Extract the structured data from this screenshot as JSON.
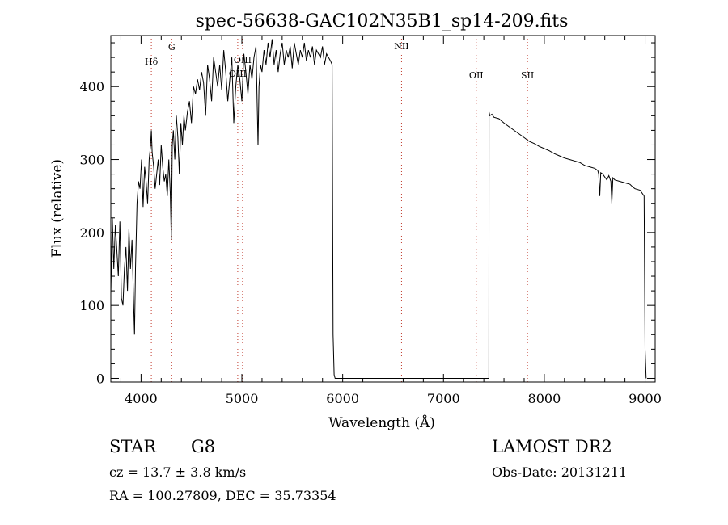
{
  "chart_data": {
    "type": "line",
    "title": "spec-56638-GAC102N35B1_sp14-209.fits",
    "xlabel": "Wavelength (Å)",
    "ylabel": "Flux (relative)",
    "xlim": [
      3700,
      9100
    ],
    "ylim": [
      -5,
      470
    ],
    "xticks": [
      4000,
      5000,
      6000,
      7000,
      8000,
      9000
    ],
    "yticks": [
      0,
      100,
      200,
      300,
      400
    ],
    "grid": false,
    "line_color": "#000000",
    "marker_color": "#c0392b",
    "spectral_lines": [
      {
        "label": "Hδ",
        "x": 4102
      },
      {
        "label": "G",
        "x": 4304
      },
      {
        "label": "OIII",
        "x": 4959
      },
      {
        "label": "OIII",
        "x": 5007
      },
      {
        "label": "NII",
        "x": 6584
      },
      {
        "label": "OII",
        "x": 7325
      },
      {
        "label": "SII",
        "x": 7833
      }
    ],
    "series": [
      {
        "x": [
          3700,
          3715,
          3730,
          3745,
          3760,
          3775,
          3790,
          3805,
          3820,
          3835,
          3850,
          3865,
          3880,
          3895,
          3910,
          3925,
          3935,
          3945,
          3960,
          3975,
          3990,
          4005,
          4020,
          4035,
          4050,
          4065,
          4080,
          4095,
          4102,
          4110,
          4125,
          4140,
          4155,
          4170,
          4185,
          4200,
          4215,
          4230,
          4245,
          4260,
          4275,
          4290,
          4300,
          4310,
          4320,
          4335,
          4350,
          4365,
          4380,
          4395,
          4410,
          4425,
          4440,
          4460,
          4480,
          4500,
          4520,
          4540,
          4560,
          4580,
          4600,
          4620,
          4640,
          4660,
          4680,
          4700,
          4720,
          4740,
          4760,
          4780,
          4800,
          4820,
          4840,
          4860,
          4880,
          4900,
          4920,
          4940,
          4960,
          4980,
          5000,
          5020,
          5040,
          5060,
          5080,
          5100,
          5120,
          5140,
          5160,
          5170,
          5185,
          5200,
          5220,
          5240,
          5260,
          5280,
          5300,
          5320,
          5340,
          5360,
          5380,
          5400,
          5420,
          5440,
          5460,
          5480,
          5500,
          5520,
          5540,
          5560,
          5580,
          5600,
          5620,
          5640,
          5660,
          5680,
          5700,
          5720,
          5740,
          5760,
          5780,
          5800,
          5820,
          5840,
          5860,
          5880,
          5895,
          5905,
          5915,
          5925,
          5935,
          5950,
          6000,
          6500,
          7000,
          7400,
          7450,
          7452,
          7460,
          7480,
          7500,
          7550,
          7600,
          7650,
          7700,
          7750,
          7800,
          7850,
          7900,
          7950,
          8000,
          8050,
          8100,
          8150,
          8200,
          8250,
          8300,
          8350,
          8400,
          8450,
          8500,
          8530,
          8540,
          8550,
          8560,
          8580,
          8600,
          8620,
          8640,
          8660,
          8670,
          8680,
          8700,
          8750,
          8800,
          8850,
          8880,
          8900,
          8950,
          8990,
          9000,
          9010
        ],
        "y": [
          115,
          220,
          150,
          210,
          175,
          140,
          215,
          110,
          100,
          150,
          180,
          120,
          205,
          150,
          190,
          110,
          60,
          150,
          240,
          270,
          260,
          300,
          235,
          290,
          270,
          240,
          300,
          320,
          340,
          310,
          290,
          260,
          280,
          300,
          265,
          320,
          290,
          270,
          280,
          250,
          300,
          255,
          190,
          320,
          340,
          300,
          360,
          330,
          280,
          350,
          320,
          360,
          340,
          365,
          380,
          350,
          400,
          390,
          410,
          395,
          420,
          405,
          360,
          430,
          410,
          380,
          440,
          420,
          400,
          430,
          395,
          450,
          420,
          380,
          410,
          440,
          350,
          400,
          430,
          410,
          380,
          445,
          420,
          390,
          430,
          410,
          440,
          455,
          320,
          400,
          430,
          420,
          450,
          430,
          460,
          440,
          465,
          430,
          450,
          420,
          445,
          460,
          430,
          450,
          440,
          455,
          425,
          460,
          445,
          430,
          450,
          440,
          460,
          435,
          450,
          440,
          455,
          430,
          450,
          445,
          440,
          455,
          430,
          445,
          440,
          435,
          430,
          60,
          5,
          0,
          0,
          0,
          0,
          0,
          0,
          0,
          0,
          365,
          360,
          362,
          358,
          356,
          350,
          345,
          340,
          335,
          330,
          325,
          322,
          318,
          315,
          312,
          308,
          305,
          302,
          300,
          298,
          296,
          292,
          290,
          288,
          285,
          280,
          250,
          282,
          280,
          276,
          272,
          278,
          270,
          240,
          275,
          272,
          270,
          268,
          266,
          262,
          260,
          258,
          250,
          40,
          0
        ]
      }
    ]
  },
  "footer": {
    "object_class": "STAR",
    "subclass": "G8",
    "survey": "LAMOST DR2",
    "cz": "cz = 13.7 ± 3.8 km/s",
    "obs_date": "Obs-Date: 20131211",
    "coords": "RA = 100.27809, DEC =  35.73354"
  }
}
